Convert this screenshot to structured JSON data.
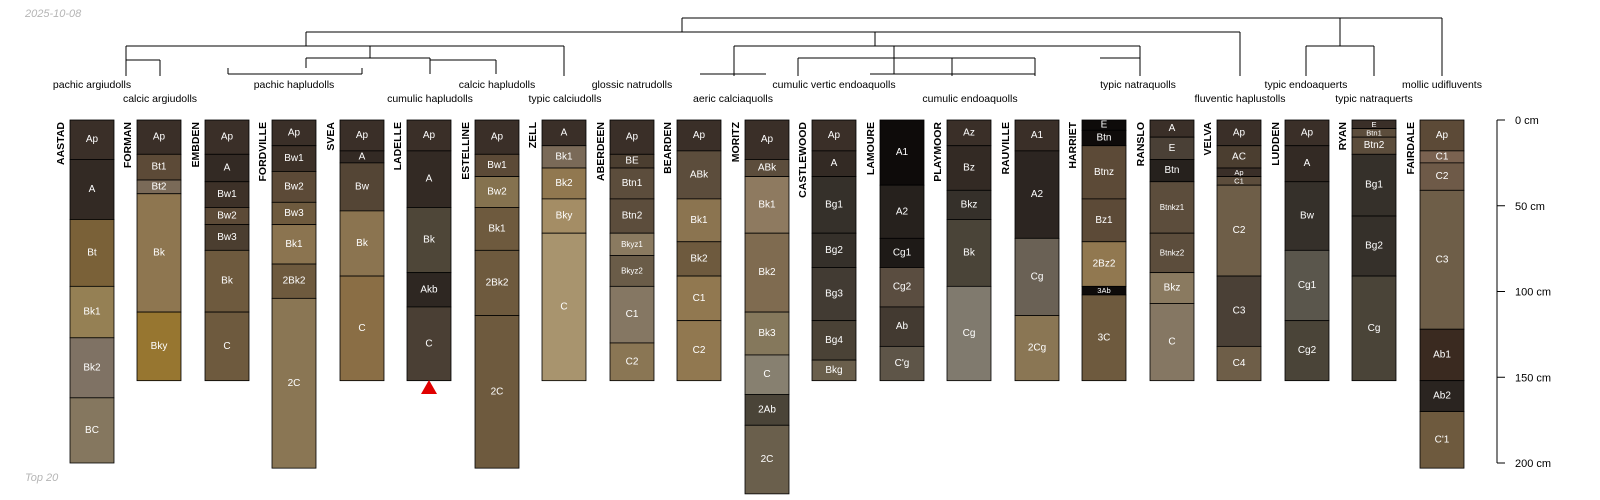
{
  "header": {
    "date": "2025-10-08"
  },
  "footer": {
    "caption": "Top 20"
  },
  "depth_axis": {
    "unit": "cm",
    "max_depth": 200,
    "ticks": [
      {
        "depth": 0,
        "label": "0 cm"
      },
      {
        "depth": 50,
        "label": "50 cm"
      },
      {
        "depth": 100,
        "label": "100 cm"
      },
      {
        "depth": 150,
        "label": "150 cm"
      },
      {
        "depth": 200,
        "label": "200 cm"
      }
    ]
  },
  "chart_data": {
    "type": "soil-profile-sketch",
    "title": "",
    "taxa_labels": [
      "pachic argiudolls",
      "calcic argiudolls",
      "pachic hapludolls",
      "cumulic hapludolls",
      "calcic hapludolls",
      "typic calciudolls",
      "glossic natrudolls",
      "aeric calciaquolls",
      "cumulic vertic endoaquolls",
      "cumulic endoaquolls",
      "typic natraquolls",
      "fluventic haplustolls",
      "typic endoaquerts",
      "typic natraquerts",
      "mollic udifluvents"
    ],
    "truncation_marker": {
      "profile": "LADELLE",
      "symbol": "triangle",
      "color": "#e00000"
    },
    "profiles": [
      {
        "name": "AASTAD",
        "horizons": [
          {
            "name": "Ap",
            "top": 0,
            "bottom": 23,
            "color": "#3a2f28"
          },
          {
            "name": "A",
            "top": 23,
            "bottom": 58,
            "color": "#332a24"
          },
          {
            "name": "Bt",
            "top": 58,
            "bottom": 97,
            "color": "#7a6138"
          },
          {
            "name": "Bk1",
            "top": 97,
            "bottom": 127,
            "color": "#958054"
          },
          {
            "name": "Bk2",
            "top": 127,
            "bottom": 162,
            "color": "#7f7264"
          },
          {
            "name": "BC",
            "top": 162,
            "bottom": 200,
            "color": "#85775f"
          }
        ]
      },
      {
        "name": "FORMAN",
        "horizons": [
          {
            "name": "Ap",
            "top": 0,
            "bottom": 20,
            "color": "#3a2f28"
          },
          {
            "name": "Bt1",
            "top": 20,
            "bottom": 35,
            "color": "#5c4a37"
          },
          {
            "name": "Bt2",
            "top": 35,
            "bottom": 43,
            "color": "#7a6a58"
          },
          {
            "name": "Bk",
            "top": 43,
            "bottom": 112,
            "color": "#8e7650"
          },
          {
            "name": "Bky",
            "top": 112,
            "bottom": 152,
            "color": "#977630"
          }
        ]
      },
      {
        "name": "EMBDEN",
        "horizons": [
          {
            "name": "Ap",
            "top": 0,
            "bottom": 20,
            "color": "#3a2f28"
          },
          {
            "name": "A",
            "top": 20,
            "bottom": 36,
            "color": "#332a24"
          },
          {
            "name": "Bw1",
            "top": 36,
            "bottom": 51,
            "color": "#3d3128"
          },
          {
            "name": "Bw2",
            "top": 51,
            "bottom": 61,
            "color": "#5c4a37"
          },
          {
            "name": "Bw3",
            "top": 61,
            "bottom": 76,
            "color": "#4b3e30"
          },
          {
            "name": "Bk",
            "top": 76,
            "bottom": 112,
            "color": "#6e5a3e"
          },
          {
            "name": "C",
            "top": 112,
            "bottom": 152,
            "color": "#6e5a3e"
          }
        ]
      },
      {
        "name": "FORDVILLE",
        "horizons": [
          {
            "name": "Ap",
            "top": 0,
            "bottom": 15,
            "color": "#3a2f28"
          },
          {
            "name": "Bw1",
            "top": 15,
            "bottom": 30,
            "color": "#3d3128"
          },
          {
            "name": "Bw2",
            "top": 30,
            "bottom": 48,
            "color": "#5c4a37"
          },
          {
            "name": "Bw3",
            "top": 48,
            "bottom": 61,
            "color": "#6e5a3e"
          },
          {
            "name": "Bk1",
            "top": 61,
            "bottom": 84,
            "color": "#8b7450"
          },
          {
            "name": "2Bk2",
            "top": 84,
            "bottom": 104,
            "color": "#6e5a3e"
          },
          {
            "name": "2C",
            "top": 104,
            "bottom": 203,
            "color": "#8a7654"
          }
        ]
      },
      {
        "name": "SVEA",
        "horizons": [
          {
            "name": "Ap",
            "top": 0,
            "bottom": 18,
            "color": "#3a2f28"
          },
          {
            "name": "A",
            "top": 18,
            "bottom": 25,
            "color": "#332a24"
          },
          {
            "name": "Bw",
            "top": 25,
            "bottom": 53,
            "color": "#544535"
          },
          {
            "name": "Bk",
            "top": 53,
            "bottom": 91,
            "color": "#8b7450"
          },
          {
            "name": "C",
            "top": 91,
            "bottom": 152,
            "color": "#8a6e45"
          }
        ]
      },
      {
        "name": "LADELLE",
        "horizons": [
          {
            "name": "Ap",
            "top": 0,
            "bottom": 18,
            "color": "#3a2f28"
          },
          {
            "name": "A",
            "top": 18,
            "bottom": 51,
            "color": "#332a24"
          },
          {
            "name": "Bk",
            "top": 51,
            "bottom": 89,
            "color": "#4e4638"
          },
          {
            "name": "Akb",
            "top": 89,
            "bottom": 109,
            "color": "#2e2722"
          },
          {
            "name": "C",
            "top": 109,
            "bottom": 152,
            "color": "#4a3f34"
          }
        ]
      },
      {
        "name": "ESTELLINE",
        "horizons": [
          {
            "name": "Ap",
            "top": 0,
            "bottom": 20,
            "color": "#3a2f28"
          },
          {
            "name": "Bw1",
            "top": 20,
            "bottom": 33,
            "color": "#5c4a37"
          },
          {
            "name": "Bw2",
            "top": 33,
            "bottom": 51,
            "color": "#85724f"
          },
          {
            "name": "Bk1",
            "top": 51,
            "bottom": 76,
            "color": "#6e5a3e"
          },
          {
            "name": "2Bk2",
            "top": 76,
            "bottom": 114,
            "color": "#6e5a3e"
          },
          {
            "name": "2C",
            "top": 114,
            "bottom": 203,
            "color": "#6e5a3e"
          }
        ]
      },
      {
        "name": "ZELL",
        "horizons": [
          {
            "name": "A",
            "top": 0,
            "bottom": 15,
            "color": "#3a2f28"
          },
          {
            "name": "Bk1",
            "top": 15,
            "bottom": 28,
            "color": "#7a6a58"
          },
          {
            "name": "Bk2",
            "top": 28,
            "bottom": 46,
            "color": "#917850"
          },
          {
            "name": "Bky",
            "top": 46,
            "bottom": 66,
            "color": "#a48d65"
          },
          {
            "name": "C",
            "top": 66,
            "bottom": 152,
            "color": "#a8946e"
          }
        ]
      },
      {
        "name": "ABERDEEN",
        "horizons": [
          {
            "name": "Ap",
            "top": 0,
            "bottom": 20,
            "color": "#3a2f28"
          },
          {
            "name": "BE",
            "top": 20,
            "bottom": 28,
            "color": "#4b3e30"
          },
          {
            "name": "Btn1",
            "top": 28,
            "bottom": 46,
            "color": "#5c4d3c"
          },
          {
            "name": "Btn2",
            "top": 46,
            "bottom": 66,
            "color": "#5c4d3c"
          },
          {
            "name": "Bkyz1",
            "top": 66,
            "bottom": 79,
            "color": "#8a7a60"
          },
          {
            "name": "Bkyz2",
            "top": 79,
            "bottom": 97,
            "color": "#6a5c48"
          },
          {
            "name": "C1",
            "top": 97,
            "bottom": 130,
            "color": "#857763"
          },
          {
            "name": "C2",
            "top": 130,
            "bottom": 152,
            "color": "#8a7654"
          }
        ]
      },
      {
        "name": "BEARDEN",
        "horizons": [
          {
            "name": "Ap",
            "top": 0,
            "bottom": 18,
            "color": "#3a2f28"
          },
          {
            "name": "ABk",
            "top": 18,
            "bottom": 46,
            "color": "#5c4d3c"
          },
          {
            "name": "Bk1",
            "top": 46,
            "bottom": 71,
            "color": "#8b7450"
          },
          {
            "name": "Bk2",
            "top": 71,
            "bottom": 91,
            "color": "#6e5a3e"
          },
          {
            "name": "C1",
            "top": 91,
            "bottom": 117,
            "color": "#917850"
          },
          {
            "name": "C2",
            "top": 117,
            "bottom": 152,
            "color": "#917850"
          }
        ]
      },
      {
        "name": "MORITZ",
        "horizons": [
          {
            "name": "Ap",
            "top": 0,
            "bottom": 23,
            "color": "#3a2f28"
          },
          {
            "name": "ABk",
            "top": 23,
            "bottom": 33,
            "color": "#5c4d3c"
          },
          {
            "name": "Bk1",
            "top": 33,
            "bottom": 66,
            "color": "#8e7a60"
          },
          {
            "name": "Bk2",
            "top": 66,
            "bottom": 112,
            "color": "#7f6b50"
          },
          {
            "name": "Bk3",
            "top": 112,
            "bottom": 137,
            "color": "#85785c"
          },
          {
            "name": "C",
            "top": 137,
            "bottom": 160,
            "color": "#878070"
          },
          {
            "name": "2Ab",
            "top": 160,
            "bottom": 178,
            "color": "#4a4438"
          },
          {
            "name": "2C",
            "top": 178,
            "bottom": 218,
            "color": "#6a5f4c"
          }
        ]
      },
      {
        "name": "CASTLEWOOD",
        "horizons": [
          {
            "name": "Ap",
            "top": 0,
            "bottom": 18,
            "color": "#3a2f28"
          },
          {
            "name": "A",
            "top": 18,
            "bottom": 33,
            "color": "#332a24"
          },
          {
            "name": "Bg1",
            "top": 33,
            "bottom": 66,
            "color": "#35302a"
          },
          {
            "name": "Bg2",
            "top": 66,
            "bottom": 86,
            "color": "#35302a"
          },
          {
            "name": "Bg3",
            "top": 86,
            "bottom": 117,
            "color": "#423b33"
          },
          {
            "name": "Bg4",
            "top": 117,
            "bottom": 140,
            "color": "#4a4236"
          },
          {
            "name": "Bkg",
            "top": 140,
            "bottom": 152,
            "color": "#6a5f4c"
          }
        ]
      },
      {
        "name": "LAMOURE",
        "horizons": [
          {
            "name": "A1",
            "top": 0,
            "bottom": 38,
            "color": "#0e0b0a"
          },
          {
            "name": "A2",
            "top": 38,
            "bottom": 69,
            "color": "#26211d"
          },
          {
            "name": "Cg1",
            "top": 69,
            "bottom": 86,
            "color": "#1e1a17"
          },
          {
            "name": "Cg2",
            "top": 86,
            "bottom": 109,
            "color": "#5a4d40"
          },
          {
            "name": "Ab",
            "top": 109,
            "bottom": 132,
            "color": "#433a31"
          },
          {
            "name": "C'g",
            "top": 132,
            "bottom": 152,
            "color": "#5e5548"
          }
        ]
      },
      {
        "name": "PLAYMOOR",
        "horizons": [
          {
            "name": "Az",
            "top": 0,
            "bottom": 15,
            "color": "#3a2f28"
          },
          {
            "name": "Bz",
            "top": 15,
            "bottom": 41,
            "color": "#332a24"
          },
          {
            "name": "Bkz",
            "top": 41,
            "bottom": 58,
            "color": "#35302a"
          },
          {
            "name": "Bk",
            "top": 58,
            "bottom": 97,
            "color": "#4a4438"
          },
          {
            "name": "Cg",
            "top": 97,
            "bottom": 152,
            "color": "#807a6e"
          }
        ]
      },
      {
        "name": "RAUVILLE",
        "horizons": [
          {
            "name": "A1",
            "top": 0,
            "bottom": 18,
            "color": "#3a2f28"
          },
          {
            "name": "A2",
            "top": 18,
            "bottom": 69,
            "color": "#2c2521"
          },
          {
            "name": "Cg",
            "top": 69,
            "bottom": 114,
            "color": "#6a6155"
          },
          {
            "name": "2Cg",
            "top": 114,
            "bottom": 152,
            "color": "#8a7654"
          }
        ]
      },
      {
        "name": "HARRIET",
        "horizons": [
          {
            "name": "E",
            "top": 0,
            "bottom": 6,
            "color": "#0e0b0a"
          },
          {
            "name": "Btn",
            "top": 6,
            "bottom": 15,
            "color": "#0e0b0a"
          },
          {
            "name": "Btnz",
            "top": 15,
            "bottom": 46,
            "color": "#5c4a37"
          },
          {
            "name": "Bz1",
            "top": 46,
            "bottom": 71,
            "color": "#5c4a37"
          },
          {
            "name": "2Bz2",
            "top": 71,
            "bottom": 97,
            "color": "#917850"
          },
          {
            "name": "3Ab",
            "top": 97,
            "bottom": 102,
            "color": "#0e0b0a"
          },
          {
            "name": "3C",
            "top": 102,
            "bottom": 152,
            "color": "#6e5a3e"
          }
        ]
      },
      {
        "name": "RANSLO",
        "horizons": [
          {
            "name": "A",
            "top": 0,
            "bottom": 10,
            "color": "#3a2f28"
          },
          {
            "name": "E",
            "top": 10,
            "bottom": 23,
            "color": "#4a4036"
          },
          {
            "name": "Btn",
            "top": 23,
            "bottom": 36,
            "color": "#26211d"
          },
          {
            "name": "Btnkz1",
            "top": 36,
            "bottom": 66,
            "color": "#5c4d3c"
          },
          {
            "name": "Btnkz2",
            "top": 66,
            "bottom": 89,
            "color": "#5c4d3c"
          },
          {
            "name": "Bkz",
            "top": 89,
            "bottom": 107,
            "color": "#8a7a60"
          },
          {
            "name": "C",
            "top": 107,
            "bottom": 152,
            "color": "#857763"
          }
        ]
      },
      {
        "name": "VELVA",
        "horizons": [
          {
            "name": "Ap",
            "top": 0,
            "bottom": 15,
            "color": "#3a2f28"
          },
          {
            "name": "AC",
            "top": 15,
            "bottom": 28,
            "color": "#4b3e30"
          },
          {
            "name": "Ap",
            "top": 28,
            "bottom": 33,
            "color": "#3a2f28"
          },
          {
            "name": "C1",
            "top": 33,
            "bottom": 38,
            "color": "#5c4d3c"
          },
          {
            "name": "C2",
            "top": 38,
            "bottom": 91,
            "color": "#6e5e48"
          },
          {
            "name": "C3",
            "top": 91,
            "bottom": 132,
            "color": "#4a4036"
          },
          {
            "name": "C4",
            "top": 132,
            "bottom": 152,
            "color": "#6e5e48"
          }
        ]
      },
      {
        "name": "LUDDEN",
        "horizons": [
          {
            "name": "Ap",
            "top": 0,
            "bottom": 15,
            "color": "#3a2f28"
          },
          {
            "name": "A",
            "top": 15,
            "bottom": 36,
            "color": "#332a24"
          },
          {
            "name": "Bw",
            "top": 36,
            "bottom": 76,
            "color": "#35302a"
          },
          {
            "name": "Cg1",
            "top": 76,
            "bottom": 117,
            "color": "#5a564c"
          },
          {
            "name": "Cg2",
            "top": 117,
            "bottom": 152,
            "color": "#4a4438"
          }
        ]
      },
      {
        "name": "RYAN",
        "horizons": [
          {
            "name": "E",
            "top": 0,
            "bottom": 5,
            "color": "#3a2f28"
          },
          {
            "name": "Btn1",
            "top": 5,
            "bottom": 10,
            "color": "#5c4d3c"
          },
          {
            "name": "Btn2",
            "top": 10,
            "bottom": 20,
            "color": "#5c4d3c"
          },
          {
            "name": "Bg1",
            "top": 20,
            "bottom": 56,
            "color": "#35302a"
          },
          {
            "name": "Bg2",
            "top": 56,
            "bottom": 91,
            "color": "#35302a"
          },
          {
            "name": "Cg",
            "top": 91,
            "bottom": 152,
            "color": "#4a4438"
          }
        ]
      },
      {
        "name": "FAIRDALE",
        "horizons": [
          {
            "name": "Ap",
            "top": 0,
            "bottom": 18,
            "color": "#5c4a37"
          },
          {
            "name": "C1",
            "top": 18,
            "bottom": 25,
            "color": "#7a6250"
          },
          {
            "name": "C2",
            "top": 25,
            "bottom": 41,
            "color": "#6e5a48"
          },
          {
            "name": "C3",
            "top": 41,
            "bottom": 122,
            "color": "#6e5e48"
          },
          {
            "name": "Ab1",
            "top": 122,
            "bottom": 152,
            "color": "#3a2a20"
          },
          {
            "name": "Ab2",
            "top": 152,
            "bottom": 170,
            "color": "#2a2420"
          },
          {
            "name": "C'1",
            "top": 170,
            "bottom": 203,
            "color": "#6e5a3e"
          }
        ]
      }
    ]
  }
}
